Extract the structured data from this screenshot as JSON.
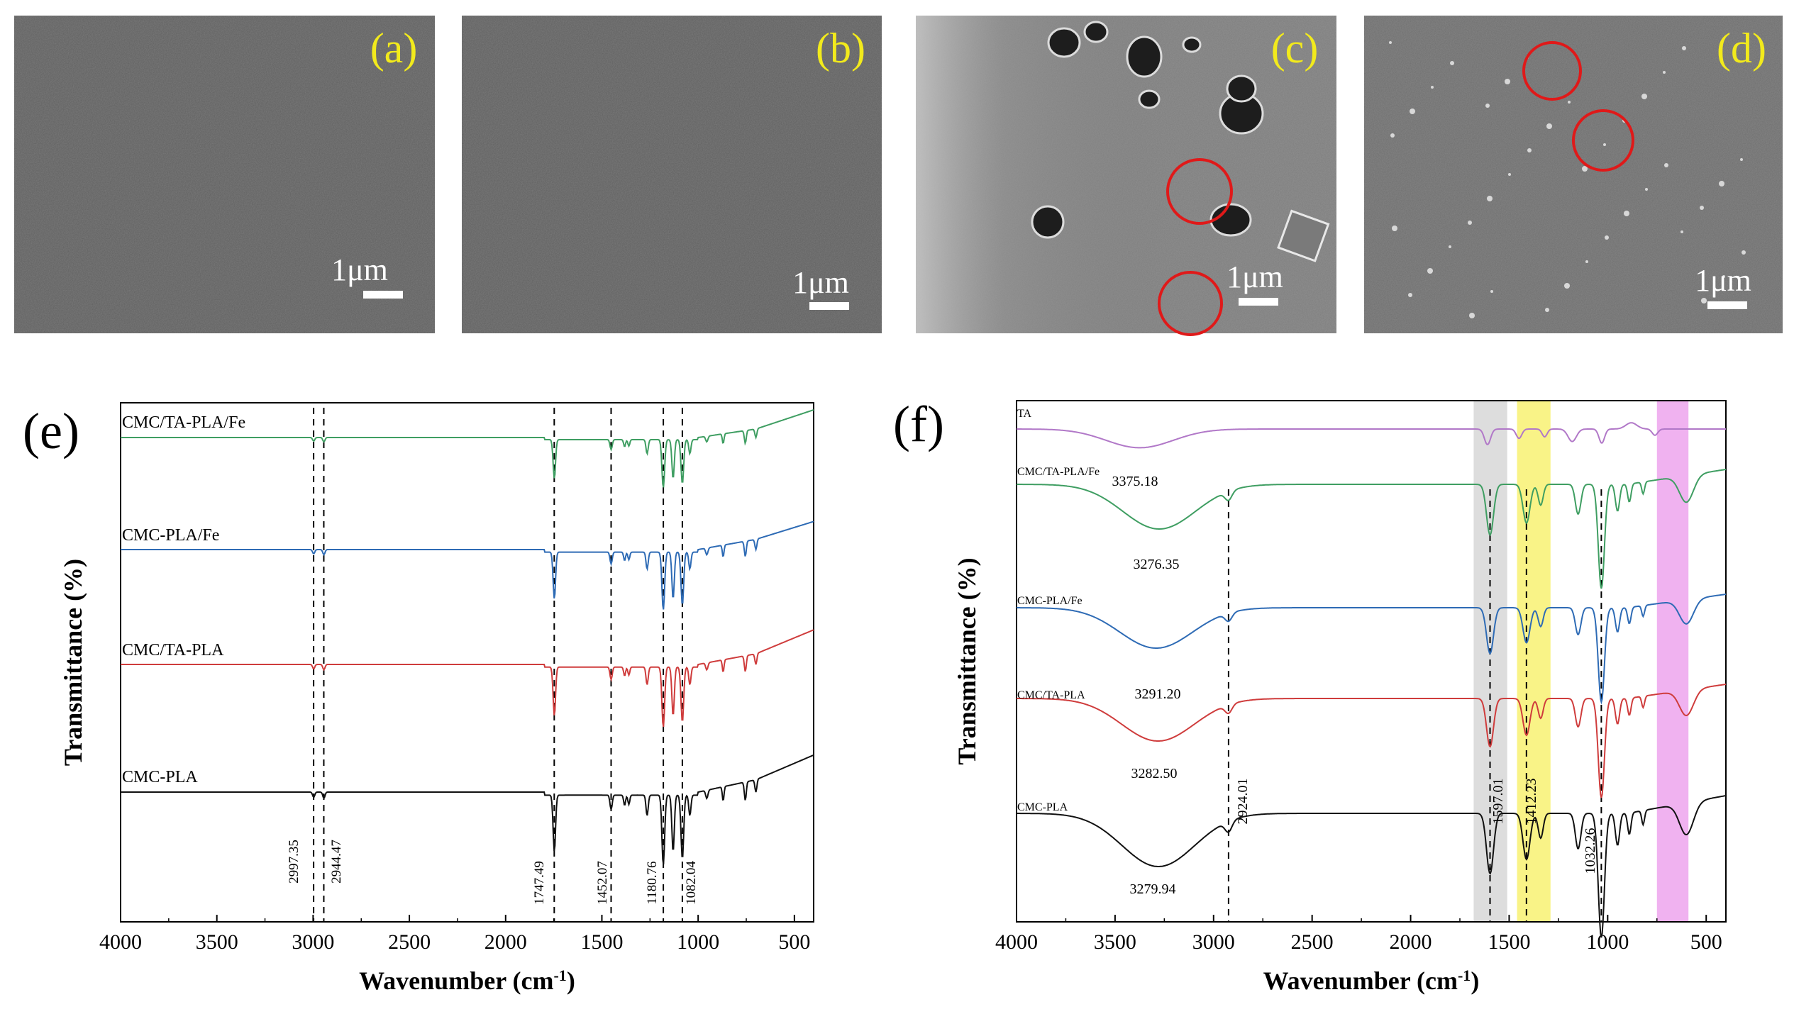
{
  "colors": {
    "sem_base": "#5a5a5a",
    "label_yellow": "#f2ea1c",
    "circle_red": "#e01919",
    "band_gray": "#d9d9d9",
    "band_yellow": "#f8f27a",
    "band_pink": "#eeaaee",
    "ta": "#b178c8",
    "cmc_ta_pla_fe": "#3f9e62",
    "cmc_pla_fe": "#2e6bb5",
    "cmc_ta_pla": "#cf3c3c",
    "cmc_pla": "#111111"
  },
  "sem_panels": [
    {
      "label": "(a)",
      "scale": "1μm"
    },
    {
      "label": "(b)",
      "scale": "1μm"
    },
    {
      "label": "(c)",
      "scale": "1μm"
    },
    {
      "label": "(d)",
      "scale": "1μm"
    }
  ],
  "chart_data": [
    {
      "panel": "(e)",
      "type": "line",
      "xlabel_main": "Wavenumber (cm",
      "xlabel_sup": "-1",
      "xlabel_close": ")",
      "ylabel": "Transmittance (%)",
      "xlim": [
        4000,
        400
      ],
      "xticks": [
        "4000",
        "3500",
        "3000",
        "2500",
        "2000",
        "1500",
        "1000",
        "500"
      ],
      "series": [
        {
          "name": "CMC/TA-PLA/Fe",
          "color_key": "cmc_ta_pla_fe"
        },
        {
          "name": "CMC-PLA/Fe",
          "color_key": "cmc_pla_fe"
        },
        {
          "name": "CMC/TA-PLA",
          "color_key": "cmc_ta_pla"
        },
        {
          "name": "CMC-PLA",
          "color_key": "cmc_pla"
        }
      ],
      "peak_lines": [
        2997.35,
        2944.47,
        1747.49,
        1452.07,
        1180.76,
        1082.04
      ],
      "peak_labels": [
        "2997.35",
        "2944.47",
        "1747.49",
        "1452.07",
        "1180.76",
        "1082.04"
      ]
    },
    {
      "panel": "(f)",
      "type": "line",
      "xlabel_main": "Wavenumber (cm",
      "xlabel_sup": "-1",
      "xlabel_close": ")",
      "ylabel": "Transmittance (%)",
      "xlim": [
        4000,
        400
      ],
      "xticks": [
        "4000",
        "3500",
        "3000",
        "2500",
        "2000",
        "1500",
        "1000",
        "500"
      ],
      "series": [
        {
          "name": "TA",
          "color_key": "ta",
          "oh_peak": "3375.18"
        },
        {
          "name": "CMC/TA-PLA/Fe",
          "color_key": "cmc_ta_pla_fe",
          "oh_peak": "3276.35"
        },
        {
          "name": "CMC-PLA/Fe",
          "color_key": "cmc_pla_fe",
          "oh_peak": "3291.20"
        },
        {
          "name": "CMC/TA-PLA",
          "color_key": "cmc_ta_pla",
          "oh_peak": "3282.50"
        },
        {
          "name": "CMC-PLA",
          "color_key": "cmc_pla",
          "oh_peak": "3279.94"
        }
      ],
      "peak_lines": [
        2924.01,
        1597.01,
        1412.23,
        1032.26
      ],
      "peak_labels": [
        "2924.01",
        "1597.01",
        "1412.23",
        "1032.26"
      ],
      "bands": [
        {
          "from": 1680,
          "to": 1510,
          "color_key": "band_gray"
        },
        {
          "from": 1460,
          "to": 1290,
          "color_key": "band_yellow"
        },
        {
          "from": 750,
          "to": 590,
          "color_key": "band_pink"
        }
      ]
    }
  ]
}
